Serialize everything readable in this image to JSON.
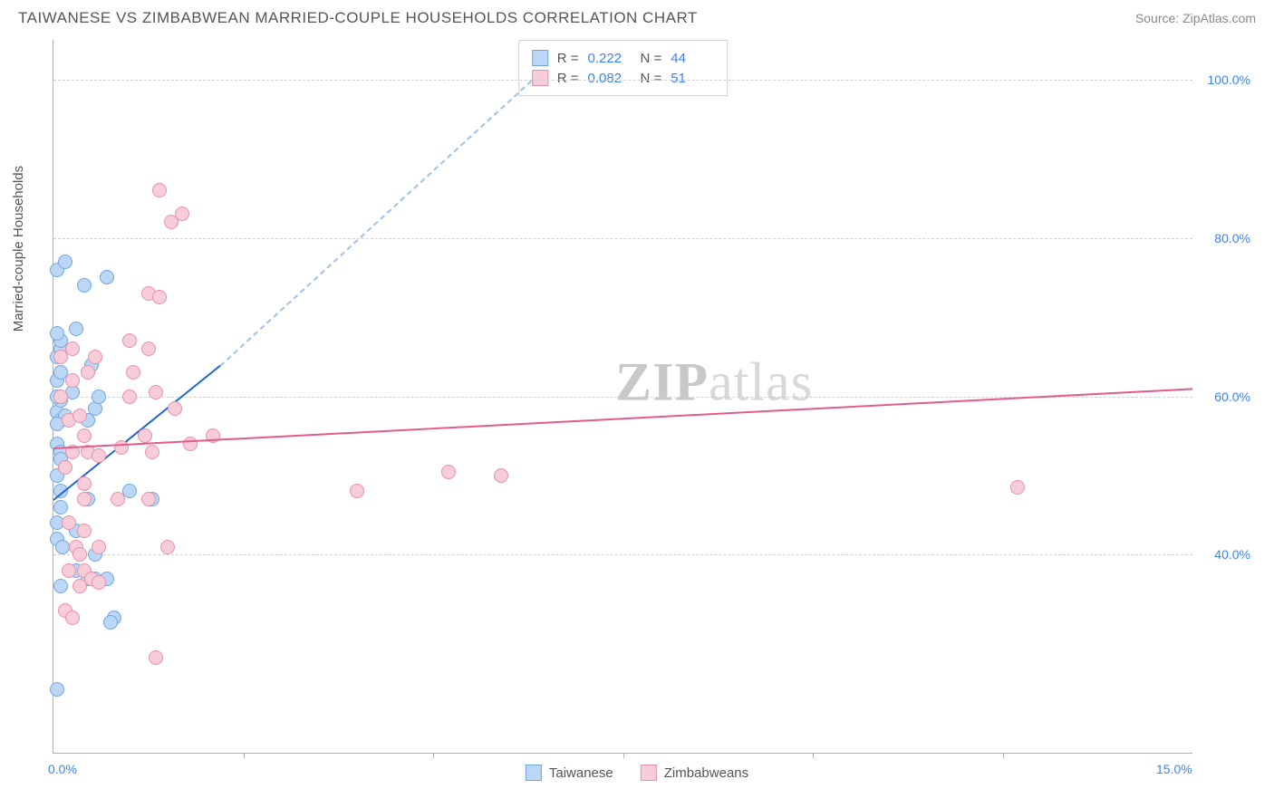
{
  "title_text": "TAIWANESE VS ZIMBABWEAN MARRIED-COUPLE HOUSEHOLDS CORRELATION CHART",
  "source_text": "Source: ZipAtlas.com",
  "ylabel_text": "Married-couple Households",
  "watermark_a": "ZIP",
  "watermark_b": "atlas",
  "chart": {
    "type": "scatter",
    "xlim": [
      0,
      15
    ],
    "ylim": [
      15,
      105
    ],
    "x_ticks": [
      0,
      15
    ],
    "x_tick_labels": [
      "0.0%",
      "15.0%"
    ],
    "x_minor_ticks": [
      2.5,
      5,
      7.5,
      10,
      12.5
    ],
    "y_grid": [
      40,
      60,
      80,
      100
    ],
    "y_grid_labels": [
      "40.0%",
      "60.0%",
      "80.0%",
      "100.0%"
    ],
    "background_color": "#ffffff",
    "grid_color": "#d0d0d0",
    "axis_color": "#b0b0b0",
    "tick_label_color": "#3b82f6",
    "series": [
      {
        "key": "taiwanese",
        "label": "Taiwanese",
        "fill": "#bcd6f5",
        "stroke": "#6fa6e0",
        "trend_color": "#1e66d0",
        "trend_dash_color": "#9ec2e6",
        "R_label": "R =",
        "R": "0.222",
        "N_label": "N =",
        "N": "44",
        "trend": {
          "x1": 0,
          "y1": 47,
          "x2": 2.2,
          "y2": 64
        },
        "trend_dash": {
          "x1": 2.2,
          "y1": 64,
          "x2": 6.3,
          "y2": 100
        },
        "points": [
          [
            0.05,
            76
          ],
          [
            0.15,
            77
          ],
          [
            0.4,
            74
          ],
          [
            0.7,
            75
          ],
          [
            0.05,
            65
          ],
          [
            0.1,
            66
          ],
          [
            0.05,
            58
          ],
          [
            0.1,
            57
          ],
          [
            0.1,
            59.5
          ],
          [
            0.15,
            57.5
          ],
          [
            0.05,
            54
          ],
          [
            0.1,
            53
          ],
          [
            0.05,
            56.5
          ],
          [
            0.45,
            57
          ],
          [
            0.55,
            58.5
          ],
          [
            0.05,
            50
          ],
          [
            0.1,
            48
          ],
          [
            0.1,
            46
          ],
          [
            0.05,
            44
          ],
          [
            0.45,
            47
          ],
          [
            1.0,
            48
          ],
          [
            1.3,
            47
          ],
          [
            0.05,
            42
          ],
          [
            0.12,
            41
          ],
          [
            0.3,
            43
          ],
          [
            0.55,
            40
          ],
          [
            0.45,
            37
          ],
          [
            0.55,
            37
          ],
          [
            0.3,
            38
          ],
          [
            0.7,
            37
          ],
          [
            0.1,
            36
          ],
          [
            0.8,
            32
          ],
          [
            0.75,
            31.5
          ],
          [
            0.05,
            23
          ],
          [
            0.05,
            60
          ],
          [
            0.25,
            60.5
          ],
          [
            0.05,
            62
          ],
          [
            0.1,
            63
          ],
          [
            0.5,
            64
          ],
          [
            0.1,
            67
          ],
          [
            0.05,
            68
          ],
          [
            0.3,
            68.5
          ],
          [
            0.6,
            60
          ],
          [
            0.1,
            52
          ]
        ]
      },
      {
        "key": "zimbabweans",
        "label": "Zimbabweans",
        "fill": "#f6cdd8",
        "stroke": "#e98fac",
        "trend_color": "#e45b8a",
        "R_label": "R =",
        "R": "0.082",
        "N_label": "N =",
        "N": "51",
        "trend": {
          "x1": 0,
          "y1": 53.5,
          "x2": 15,
          "y2": 61
        },
        "points": [
          [
            1.4,
            86
          ],
          [
            1.7,
            83
          ],
          [
            1.55,
            82
          ],
          [
            1.25,
            73
          ],
          [
            1.4,
            72.5
          ],
          [
            1.25,
            66
          ],
          [
            1.0,
            67
          ],
          [
            0.55,
            65
          ],
          [
            0.25,
            66
          ],
          [
            0.1,
            65
          ],
          [
            0.45,
            63
          ],
          [
            1.05,
            63
          ],
          [
            1.0,
            60
          ],
          [
            1.35,
            60.5
          ],
          [
            0.2,
            57
          ],
          [
            0.35,
            57.5
          ],
          [
            0.4,
            55
          ],
          [
            1.2,
            55
          ],
          [
            1.6,
            58.5
          ],
          [
            0.25,
            53
          ],
          [
            0.45,
            53
          ],
          [
            0.6,
            52.5
          ],
          [
            0.9,
            53.5
          ],
          [
            1.3,
            53
          ],
          [
            1.8,
            54
          ],
          [
            2.1,
            55
          ],
          [
            0.15,
            51
          ],
          [
            0.4,
            49
          ],
          [
            0.4,
            47
          ],
          [
            0.85,
            47
          ],
          [
            1.25,
            47
          ],
          [
            5.2,
            50.5
          ],
          [
            5.9,
            50
          ],
          [
            12.7,
            48.5
          ],
          [
            4.0,
            48
          ],
          [
            0.2,
            44
          ],
          [
            0.4,
            43
          ],
          [
            0.3,
            41
          ],
          [
            0.35,
            40
          ],
          [
            0.6,
            41
          ],
          [
            1.5,
            41
          ],
          [
            0.2,
            38
          ],
          [
            0.4,
            38
          ],
          [
            0.5,
            37
          ],
          [
            0.35,
            36
          ],
          [
            0.6,
            36.5
          ],
          [
            0.15,
            33
          ],
          [
            0.25,
            32
          ],
          [
            1.35,
            27
          ],
          [
            0.1,
            60
          ],
          [
            0.25,
            62
          ]
        ]
      }
    ]
  }
}
